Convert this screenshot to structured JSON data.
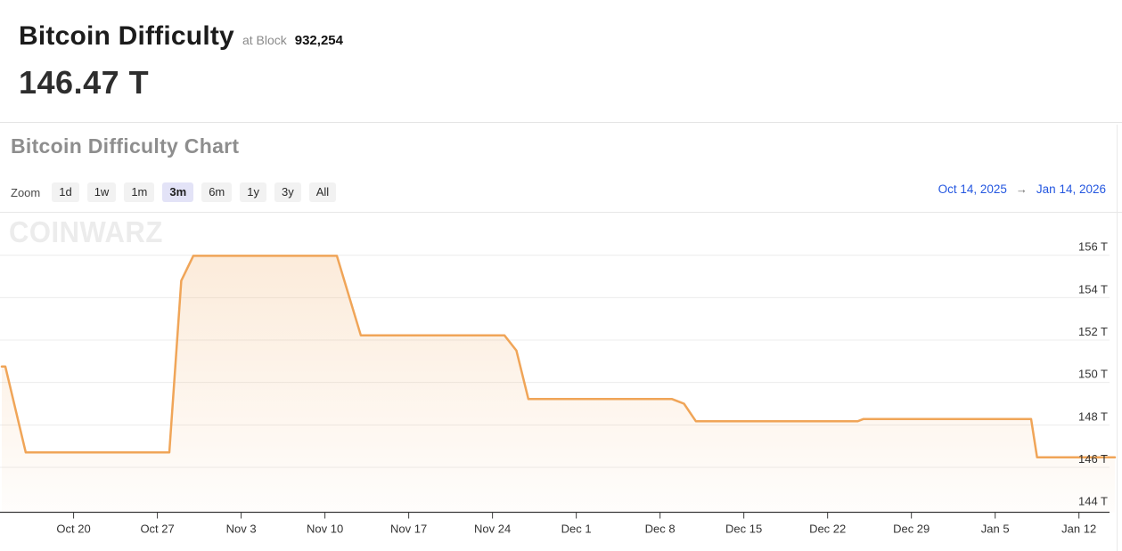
{
  "header": {
    "title": "Bitcoin Difficulty",
    "at_block_label": "at Block",
    "block_number": "932,254",
    "current_value": "146.47 T"
  },
  "section": {
    "title": "Bitcoin Difficulty Chart"
  },
  "zoom_controls": {
    "label": "Zoom",
    "buttons": [
      {
        "label": "1d",
        "selected": false
      },
      {
        "label": "1w",
        "selected": false
      },
      {
        "label": "1m",
        "selected": false
      },
      {
        "label": "3m",
        "selected": true
      },
      {
        "label": "6m",
        "selected": false
      },
      {
        "label": "1y",
        "selected": false
      },
      {
        "label": "3y",
        "selected": false
      },
      {
        "label": "All",
        "selected": false
      }
    ]
  },
  "date_range": {
    "start": "Oct 14, 2025",
    "arrow": "→",
    "end": "Jan 14, 2026"
  },
  "watermark": "COINWARZ",
  "colors": {
    "line": "#f0a558",
    "fill_top": "rgba(240,165,88,0.22)",
    "fill_bottom": "rgba(240,165,88,0.02)",
    "grid": "#ececec",
    "axis": "#3a3a3a",
    "label": "#333333",
    "link": "#2457e0",
    "zoom_bg": "#f2f2f2",
    "selected_zoom_bg": "#e3e3f7"
  },
  "chart_data": {
    "type": "area",
    "title": "Bitcoin Difficulty Chart",
    "unit": "T",
    "x_start_date": "Oct 14, 2025",
    "x_end_date": "Jan 14, 2026",
    "grid": "horizontal",
    "legend": "none",
    "ylim": [
      144,
      156
    ],
    "series": [
      {
        "name": "Bitcoin Difficulty",
        "points": [
          {
            "day": 0,
            "date": "Oct 14",
            "value": 150.75
          },
          {
            "day": 0.3,
            "date": "Oct 14",
            "value": 150.75
          },
          {
            "day": 2,
            "date": "Oct 16",
            "value": 146.7
          },
          {
            "day": 14,
            "date": "Oct 28",
            "value": 146.7
          },
          {
            "day": 15,
            "date": "Oct 29",
            "value": 154.8
          },
          {
            "day": 16,
            "date": "Oct 30",
            "value": 155.97
          },
          {
            "day": 28,
            "date": "Nov 11",
            "value": 155.97
          },
          {
            "day": 30,
            "date": "Nov 13",
            "value": 152.22
          },
          {
            "day": 42,
            "date": "Nov 25",
            "value": 152.22
          },
          {
            "day": 43,
            "date": "Nov 26",
            "value": 151.5
          },
          {
            "day": 44,
            "date": "Nov 27",
            "value": 149.22
          },
          {
            "day": 56,
            "date": "Dec 9",
            "value": 149.22
          },
          {
            "day": 57,
            "date": "Dec 10",
            "value": 149.0
          },
          {
            "day": 58,
            "date": "Dec 11",
            "value": 148.17
          },
          {
            "day": 71.5,
            "date": "Dec 24",
            "value": 148.17
          },
          {
            "day": 72,
            "date": "Dec 25",
            "value": 148.28
          },
          {
            "day": 86,
            "date": "Jan 8",
            "value": 148.28
          },
          {
            "day": 86.5,
            "date": "Jan 9",
            "value": 146.47
          },
          {
            "day": 93,
            "date": "Jan 14",
            "value": 146.47
          }
        ]
      }
    ],
    "x_ticks": [
      {
        "day": 6,
        "label": "Oct 20"
      },
      {
        "day": 13,
        "label": "Oct 27"
      },
      {
        "day": 20,
        "label": "Nov 3"
      },
      {
        "day": 27,
        "label": "Nov 10"
      },
      {
        "day": 34,
        "label": "Nov 17"
      },
      {
        "day": 41,
        "label": "Nov 24"
      },
      {
        "day": 48,
        "label": "Dec 1"
      },
      {
        "day": 55,
        "label": "Dec 8"
      },
      {
        "day": 62,
        "label": "Dec 15"
      },
      {
        "day": 69,
        "label": "Dec 22"
      },
      {
        "day": 76,
        "label": "Dec 29"
      },
      {
        "day": 83,
        "label": "Jan 5"
      },
      {
        "day": 90,
        "label": "Jan 12"
      }
    ],
    "y_ticks": [
      {
        "value": 156,
        "label": "156 T"
      },
      {
        "value": 154,
        "label": "154 T"
      },
      {
        "value": 152,
        "label": "152 T"
      },
      {
        "value": 150,
        "label": "150 T"
      },
      {
        "value": 148,
        "label": "148 T"
      },
      {
        "value": 146,
        "label": "146 T"
      },
      {
        "value": 144,
        "label": "144 T"
      }
    ]
  }
}
